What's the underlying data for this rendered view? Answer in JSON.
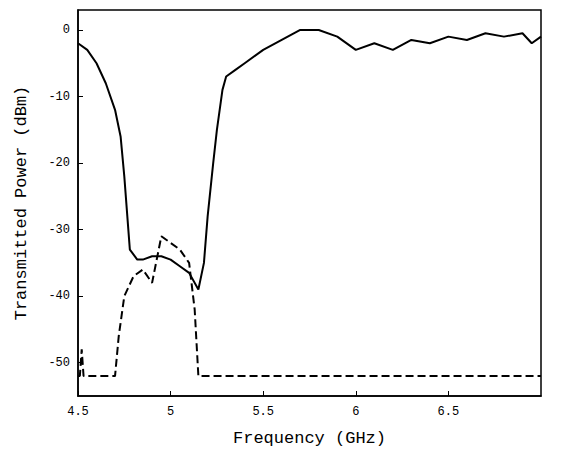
{
  "chart_data": {
    "type": "line",
    "x_label": "Frequency (GHz)",
    "y_label": "Transmitted Power (dBm)",
    "xlim": [
      4.5,
      7
    ],
    "xticks": [
      4.5,
      5,
      5.5,
      6,
      6.5
    ],
    "ylim": [
      -55,
      3
    ],
    "yticks": [
      -50,
      -40,
      -30,
      -20,
      -10,
      0
    ],
    "grid": false,
    "series": [
      {
        "color": "#000000",
        "line_style": "solid",
        "x": [
          4.5,
          4.55,
          4.6,
          4.65,
          4.7,
          4.73,
          4.75,
          4.78,
          4.82,
          4.85,
          4.9,
          4.95,
          5.0,
          5.05,
          5.1,
          5.15,
          5.18,
          5.2,
          5.23,
          5.25,
          5.28,
          5.3,
          5.35,
          5.4,
          5.5,
          5.6,
          5.7,
          5.8,
          5.9,
          6.0,
          6.1,
          6.2,
          6.3,
          6.4,
          6.5,
          6.6,
          6.7,
          6.8,
          6.9,
          6.95,
          7.0
        ],
        "values": [
          -2,
          -3,
          -5,
          -8,
          -12,
          -16,
          -22,
          -33,
          -34.5,
          -34.5,
          -34,
          -34,
          -34.5,
          -35.5,
          -36.5,
          -39,
          -35,
          -28,
          -20,
          -15,
          -9,
          -7,
          -6,
          -5,
          -3,
          -1.5,
          0,
          0,
          -1,
          -3,
          -2,
          -3,
          -1.5,
          -2,
          -1,
          -1.5,
          -0.5,
          -1,
          -0.5,
          -2,
          -1
        ]
      },
      {
        "color": "#000000",
        "line_style": "dashed",
        "x": [
          4.5,
          4.51,
          4.52,
          4.53,
          4.6,
          4.7,
          4.72,
          4.75,
          4.8,
          4.85,
          4.9,
          4.95,
          5.0,
          5.05,
          5.1,
          5.13,
          5.15,
          5.3,
          5.5,
          6.0,
          6.5,
          7.0
        ],
        "values": [
          -52,
          -52,
          -48,
          -52,
          -52,
          -52,
          -46,
          -40,
          -37,
          -36,
          -38,
          -31,
          -32,
          -33,
          -35,
          -42,
          -52,
          -52,
          -52,
          -52,
          -52,
          -52
        ]
      }
    ]
  }
}
